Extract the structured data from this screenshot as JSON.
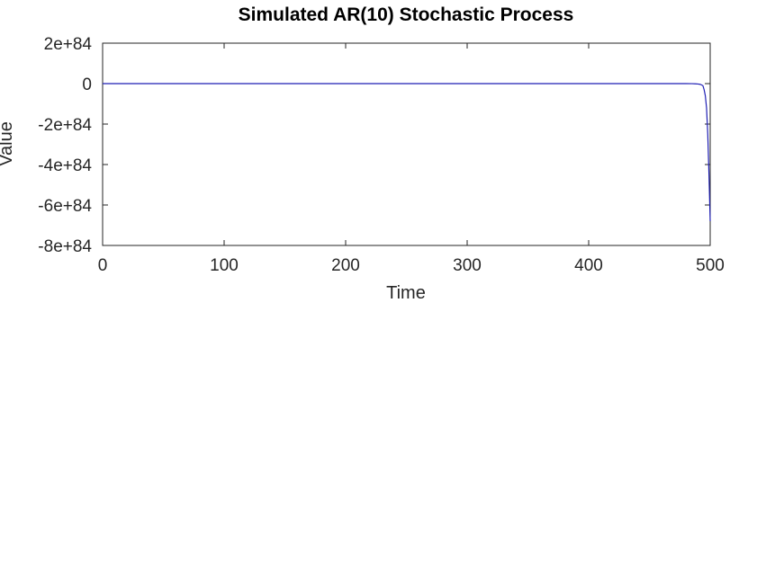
{
  "chart_data": {
    "type": "line",
    "title": "Simulated AR(10) Stochastic Process",
    "xlabel": "Time",
    "ylabel": "Value",
    "xlim": [
      0,
      500
    ],
    "ylim": [
      -8e+84,
      2e+84
    ],
    "x_ticks": [
      0,
      100,
      200,
      300,
      400,
      500
    ],
    "x_tick_labels": [
      "0",
      "100",
      "200",
      "300",
      "400",
      "500"
    ],
    "y_ticks": [
      2e+84,
      0,
      -2e+84,
      -4e+84,
      -6e+84,
      -8e+84
    ],
    "y_tick_labels": [
      "2e+84",
      "0",
      "-2e+84",
      "-4e+84",
      "-6e+84",
      "-8e+84"
    ],
    "grid": false,
    "legend": "none",
    "series": [
      {
        "color": "#1f1fb4",
        "x": [
          0,
          100,
          200,
          300,
          400,
          470,
          480,
          485,
          488,
          490,
          492,
          494,
          495,
          496,
          497,
          498,
          499,
          500
        ],
        "values": [
          0,
          0,
          0,
          0,
          0,
          0,
          -1e+81,
          -3e+81,
          -1e+82,
          -2e+82,
          -4e+82,
          -1e+83,
          -3e+83,
          -6e+83,
          -1.2e+84,
          -2.5e+84,
          -4.5e+84,
          -6.8e+84
        ]
      }
    ]
  }
}
